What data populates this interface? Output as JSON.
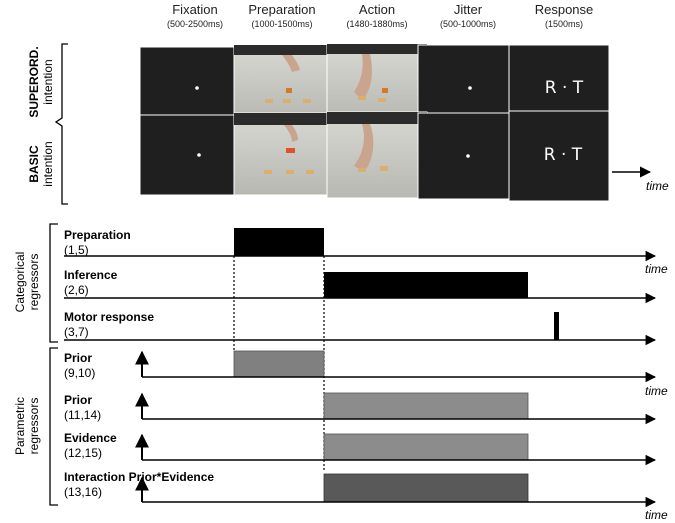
{
  "phases": [
    {
      "name": "Fixation",
      "duration": "(500-2500ms)"
    },
    {
      "name": "Preparation",
      "duration": "(1000-1500ms)"
    },
    {
      "name": "Action",
      "duration": "(1480-1880ms)"
    },
    {
      "name": "Jitter",
      "duration": "(500-1000ms)"
    },
    {
      "name": "Response",
      "duration": "(1500ms)"
    }
  ],
  "conditions": {
    "superordinate": {
      "line1": "SUPERORD.",
      "line2": "intention"
    },
    "basic": {
      "line1": "BASIC",
      "line2": "intention"
    }
  },
  "response_text": "R · T",
  "time_label": "time",
  "groups": {
    "categorical": {
      "line1": "Categorical",
      "line2": "regressors"
    },
    "parametric": {
      "line1": "Parametric",
      "line2": "regressors"
    }
  },
  "regressors": [
    {
      "name": "Preparation",
      "index": "(1,5)"
    },
    {
      "name": "Inference",
      "index": "(2,6)"
    },
    {
      "name": "Motor response",
      "index": "(3,7)"
    },
    {
      "name": "Prior",
      "index": "(9,10)"
    },
    {
      "name": "Prior",
      "index": "(11,14)"
    },
    {
      "name": "Evidence",
      "index": "(12,15)"
    },
    {
      "name": "Interaction Prior*Evidence",
      "index": "(13,16)"
    }
  ],
  "colors": {
    "screen": "#1f1f1f",
    "black_box": "#000000",
    "gray_prior": "#808080",
    "gray_light": "#8c8c8c",
    "gray_dark": "#595959"
  }
}
